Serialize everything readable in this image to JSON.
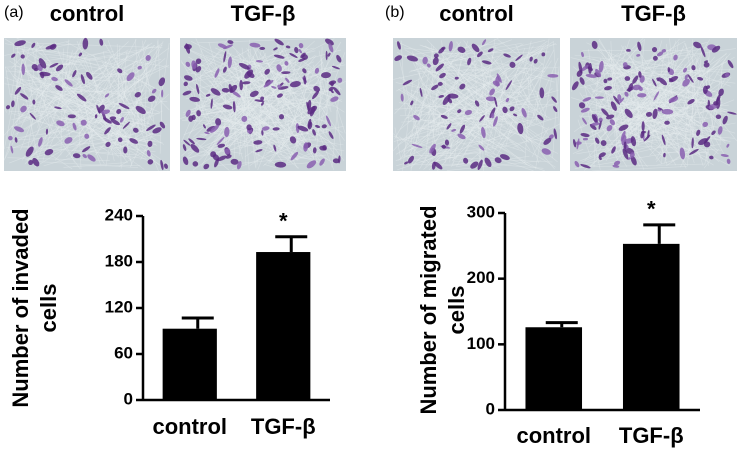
{
  "chart_data": [
    {
      "type": "bar",
      "panel": "(a)",
      "image_labels": [
        "control",
        "TGF-β"
      ],
      "ylabel": [
        "Number of invaded",
        "cells"
      ],
      "categories": [
        "control",
        "TGF-β"
      ],
      "values": [
        93,
        193
      ],
      "errors": [
        14,
        20
      ],
      "color": "#000000",
      "annotations": [
        null,
        "*"
      ],
      "ylim": [
        0,
        240
      ],
      "yticks": [
        0,
        60,
        120,
        180,
        240
      ]
    },
    {
      "type": "bar",
      "panel": "(b)",
      "image_labels": [
        "control",
        "TGF-β"
      ],
      "ylabel": [
        "Number of migrated",
        "cells"
      ],
      "categories": [
        "control",
        "TGF-β"
      ],
      "values": [
        126,
        253
      ],
      "errors": [
        7,
        29
      ],
      "color": "#000000",
      "annotations": [
        null,
        "*"
      ],
      "ylim": [
        0,
        300
      ],
      "yticks": [
        0,
        100,
        200,
        300
      ]
    }
  ]
}
